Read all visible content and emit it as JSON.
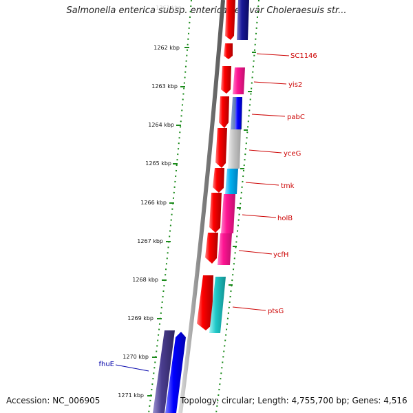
{
  "title": "Salmonella enterica subsp. enterica serovar Choleraesuis str...",
  "top_tick_faded": "1261 kbp",
  "accession": "Accession: NC_006905",
  "summary": "Topology: circular; Length: 4,755,700 bp; Genes: 4,516",
  "ticks": [
    "1262 kbp",
    "1263 kbp",
    "1264 kbp",
    "1265 kbp",
    "1266 kbp",
    "1267 kbp",
    "1268 kbp",
    "1269 kbp",
    "1270 kbp",
    "1271 kbp"
  ],
  "gene_labels": [
    {
      "name": "SC1146",
      "color": "#cc0000"
    },
    {
      "name": "yis2",
      "color": "#cc0000"
    },
    {
      "name": "pabC",
      "color": "#cc0000"
    },
    {
      "name": "yceG",
      "color": "#cc0000"
    },
    {
      "name": "tmk",
      "color": "#cc0000"
    },
    {
      "name": "holB",
      "color": "#cc0000"
    },
    {
      "name": "ycfH",
      "color": "#cc0000"
    },
    {
      "name": "ptsG",
      "color": "#cc0000"
    },
    {
      "name": "fhuE",
      "color": "#0000aa"
    }
  ]
}
